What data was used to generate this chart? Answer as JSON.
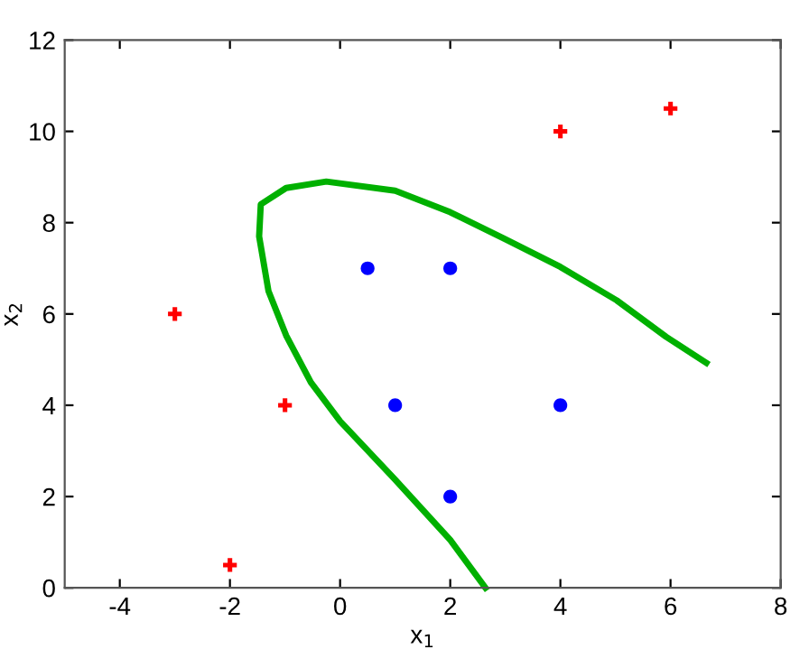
{
  "chart_data": {
    "type": "scatter",
    "xlabel": "x$_{1}$",
    "ylabel": "x$_{2}$",
    "xlim": [
      -5,
      8
    ],
    "ylim": [
      0,
      12
    ],
    "xticks": [
      -4,
      -2,
      0,
      2,
      4,
      6,
      8
    ],
    "yticks": [
      0,
      2,
      4,
      6,
      8,
      10,
      12
    ],
    "grid": false,
    "legend": false,
    "series": [
      {
        "marker": "cross",
        "color": "#ff0000",
        "x": [
          -3,
          -2,
          -1,
          4,
          6
        ],
        "values": [
          6,
          0.5,
          4,
          10,
          10.5
        ]
      },
      {
        "marker": "circle",
        "color": "#0000ff",
        "x": [
          0.5,
          2,
          1,
          2,
          4
        ],
        "values": [
          7,
          7,
          4,
          2,
          4
        ]
      },
      {
        "type": "line",
        "marker": "none",
        "line_style": "solid",
        "color": "#00b000",
        "x": [
          2.64,
          2.0,
          1.0,
          0.0,
          -0.53,
          -0.98,
          -1.3,
          -1.47,
          -1.44,
          -0.98,
          -0.25,
          1.0,
          2.0,
          2.98,
          4.0,
          5.02,
          5.92,
          6.65
        ],
        "values": [
          0,
          1.05,
          2.37,
          3.65,
          4.5,
          5.53,
          6.5,
          7.7,
          8.4,
          8.76,
          8.9,
          8.7,
          8.23,
          7.65,
          7.03,
          6.3,
          5.5,
          4.93
        ]
      }
    ]
  }
}
